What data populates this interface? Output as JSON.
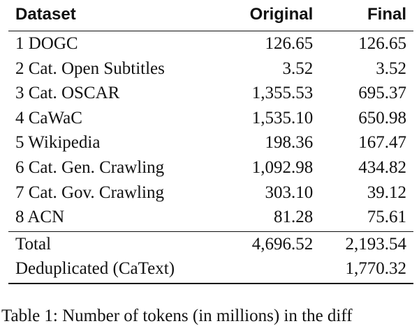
{
  "table": {
    "headers": [
      "Dataset",
      "Original",
      "Final"
    ],
    "rows": [
      [
        "1 DOGC",
        "126.65",
        "126.65"
      ],
      [
        "2 Cat. Open Subtitles",
        "3.52",
        "3.52"
      ],
      [
        "3 Cat. OSCAR",
        "1,355.53",
        "695.37"
      ],
      [
        "4 CaWaC",
        "1,535.10",
        "650.98"
      ],
      [
        "5 Wikipedia",
        "198.36",
        "167.47"
      ],
      [
        "6 Cat. Gen. Crawling",
        "1,092.98",
        "434.82"
      ],
      [
        "7 Cat. Gov. Crawling",
        "303.10",
        "39.12"
      ],
      [
        "8 ACN",
        "81.28",
        "75.61"
      ]
    ],
    "total": [
      "Total",
      "4,696.52",
      "2,193.54"
    ],
    "deduplicated": [
      "Deduplicated (CaText)",
      "",
      "1,770.32"
    ]
  },
  "caption": "Table 1: Number of tokens (in millions) in the diff"
}
